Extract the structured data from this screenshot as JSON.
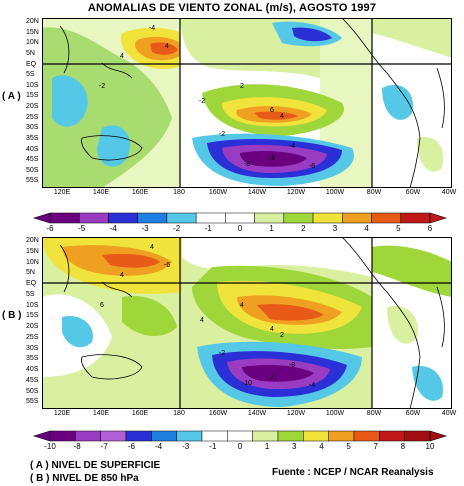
{
  "title": "ANOMALIAS DE VIENTO ZONAL (m/s), AGOSTO 1997",
  "panels": [
    {
      "label": "( A )",
      "lat_ticks": [
        "20N",
        "15N",
        "10N",
        "5N",
        "EQ",
        "5S",
        "10S",
        "15S",
        "20S",
        "25S",
        "30S",
        "35S",
        "40S",
        "45S",
        "50S",
        "55S"
      ],
      "lon_ticks": [
        "120E",
        "140E",
        "160E",
        "180",
        "160W",
        "140W",
        "120W",
        "100W",
        "80W",
        "60W",
        "40W"
      ],
      "colorbar": {
        "labels": [
          "-6",
          "-5",
          "-4",
          "-3",
          "-2",
          "-1",
          "0",
          "1",
          "2",
          "3",
          "4",
          "5",
          "6"
        ],
        "colors": [
          "#6a0080",
          "#9a3cc2",
          "#2b2fd6",
          "#1f7fe0",
          "#55c8e8",
          "#ffffff",
          "#ffffff",
          "#d8f0a0",
          "#9fd63a",
          "#f0e43c",
          "#f0a020",
          "#e85a18",
          "#c01818"
        ]
      },
      "contour_labels": [
        "-4",
        "-2",
        "4",
        "2",
        "-2",
        "4",
        "6",
        "-8",
        "-6",
        "-8",
        "-4",
        "-2",
        "4"
      ]
    },
    {
      "label": "( B )",
      "lat_ticks": [
        "20N",
        "15N",
        "10N",
        "5N",
        "EQ",
        "5S",
        "10S",
        "15S",
        "20S",
        "25S",
        "30S",
        "35S",
        "40S",
        "45S",
        "50S",
        "55S"
      ],
      "lon_ticks": [
        "120E",
        "140E",
        "160E",
        "180",
        "160W",
        "140W",
        "120W",
        "100W",
        "80W",
        "60W",
        "40W"
      ],
      "colorbar": {
        "labels": [
          "-10",
          "-8",
          "-7",
          "-6",
          "-4",
          "-3",
          "-1",
          "0",
          "1",
          "3",
          "4",
          "5",
          "7",
          "8",
          "10"
        ],
        "colors": [
          "#6a0080",
          "#9a3cc2",
          "#b25fd9",
          "#2b2fd6",
          "#1f7fe0",
          "#55c8e8",
          "#ffffff",
          "#ffffff",
          "#d8f0a0",
          "#9fd63a",
          "#f0e43c",
          "#f0a020",
          "#e85a18",
          "#c01818",
          "#a01010"
        ]
      },
      "contour_labels": [
        "4",
        "6",
        "-6",
        "4",
        "4",
        "2",
        "4",
        "2",
        "-4",
        "-10",
        "-8",
        "-2",
        "4"
      ]
    }
  ],
  "legend_a": "( A ) NIVEL DE SUPERFICIE",
  "legend_b": "( B ) NIVEL DE 850 hPa",
  "source": "Fuente : NCEP / NCAR Reanalysis"
}
